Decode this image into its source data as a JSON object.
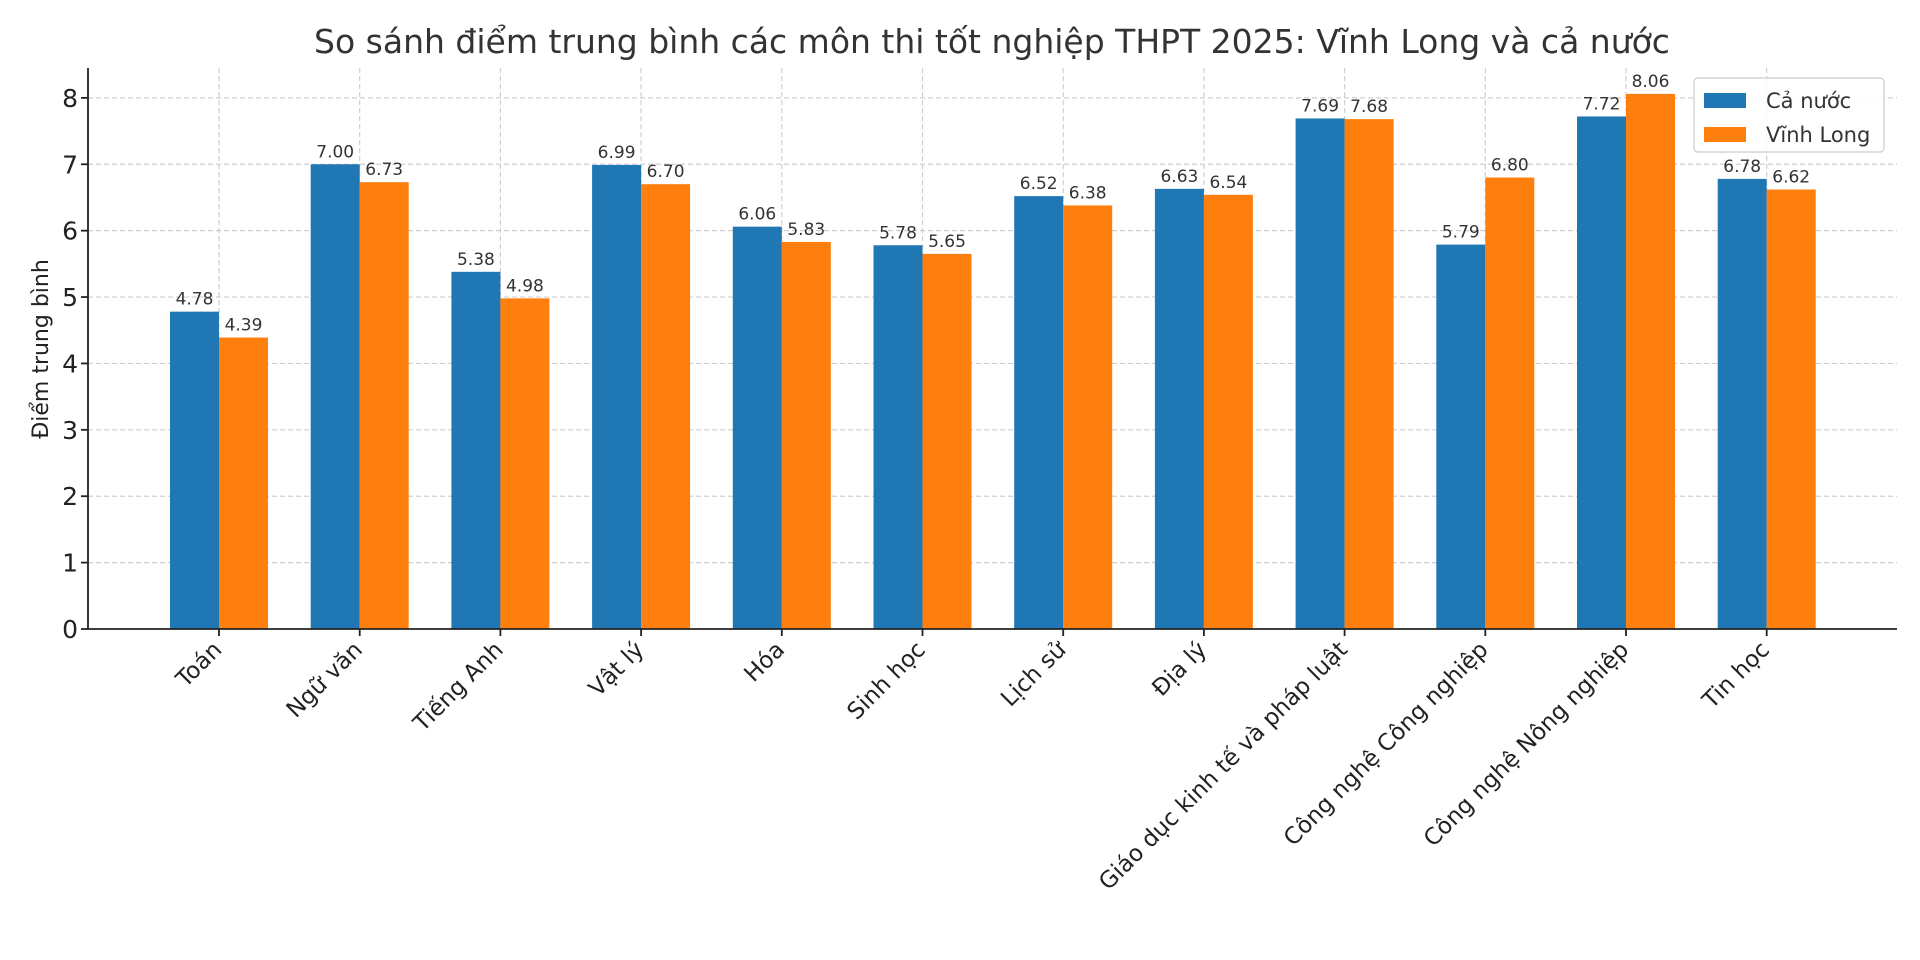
{
  "chart_data": {
    "type": "bar",
    "title": "So sánh điểm trung bình các môn thi tốt nghiệp THPT 2025: Vĩnh Long và cả nước",
    "xlabel": "",
    "ylabel": "Điểm trung bình",
    "ylim": [
      0,
      8.45
    ],
    "yticks": [
      0,
      1,
      2,
      3,
      4,
      5,
      6,
      7,
      8
    ],
    "grid": true,
    "legend_position": "top-right",
    "categories": [
      "Toán",
      "Ngữ văn",
      "Tiếng Anh",
      "Vật lý",
      "Hóa",
      "Sinh học",
      "Lịch sử",
      "Địa lý",
      "Giáo dục kinh tế và pháp luật",
      "Công nghệ Công nghiệp",
      "Công nghệ Nông nghiệp",
      "Tin học"
    ],
    "series": [
      {
        "name": "Cả nước",
        "color": "#1f77b4",
        "values": [
          4.78,
          7.0,
          5.38,
          6.99,
          6.06,
          5.78,
          6.52,
          6.63,
          7.69,
          5.79,
          7.72,
          6.78
        ]
      },
      {
        "name": "Vĩnh Long",
        "color": "#ff7f0e",
        "values": [
          4.39,
          6.73,
          4.98,
          6.7,
          5.83,
          5.65,
          6.38,
          6.54,
          7.68,
          6.8,
          8.06,
          6.62
        ]
      }
    ]
  }
}
